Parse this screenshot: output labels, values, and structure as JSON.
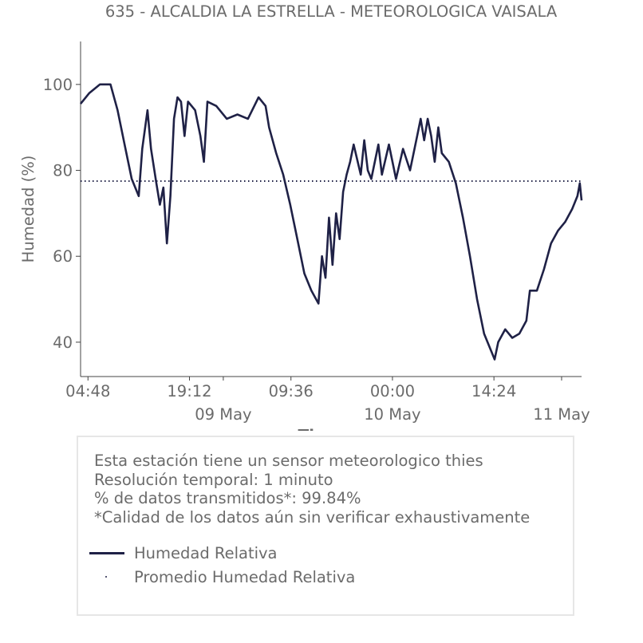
{
  "chart_data": {
    "type": "line",
    "title": "635 - ALCALDIA LA ESTRELLA - METEOROLOGICA VAISALA",
    "xlabel": "Tiempo",
    "ylabel": "Humedad (%)",
    "ylim": [
      32,
      110
    ],
    "yticks": [
      40,
      60,
      80,
      100
    ],
    "xlim": [
      "2023-05-08T03:45",
      "2023-05-11T02:50"
    ],
    "xticks": [
      {
        "t": "2023-05-08T04:48",
        "label": "04:48",
        "sublabel": ""
      },
      {
        "t": "2023-05-08T19:12",
        "label": "19:12",
        "sublabel": ""
      },
      {
        "t": "2023-05-09T00:00",
        "label": "",
        "sublabel": "09 May"
      },
      {
        "t": "2023-05-09T09:36",
        "label": "09:36",
        "sublabel": ""
      },
      {
        "t": "2023-05-10T00:00",
        "label": "00:00",
        "sublabel": "10 May"
      },
      {
        "t": "2023-05-10T14:24",
        "label": "14:24",
        "sublabel": ""
      },
      {
        "t": "2023-05-11T00:00",
        "label": "",
        "sublabel": "11 May"
      }
    ],
    "grid": false,
    "series": [
      {
        "name": "Humedad Relativa",
        "color": "#1f2146",
        "style": "solid",
        "points": [
          [
            "2023-05-08T03:45",
            95.5
          ],
          [
            "2023-05-08T05:00",
            98
          ],
          [
            "2023-05-08T06:30",
            100
          ],
          [
            "2023-05-08T08:00",
            100
          ],
          [
            "2023-05-08T09:00",
            94
          ],
          [
            "2023-05-08T10:00",
            86
          ],
          [
            "2023-05-08T11:00",
            78
          ],
          [
            "2023-05-08T12:00",
            74
          ],
          [
            "2023-05-08T12:30",
            85
          ],
          [
            "2023-05-08T13:15",
            94
          ],
          [
            "2023-05-08T13:45",
            85
          ],
          [
            "2023-05-08T14:30",
            77
          ],
          [
            "2023-05-08T15:00",
            72
          ],
          [
            "2023-05-08T15:30",
            76
          ],
          [
            "2023-05-08T16:00",
            63
          ],
          [
            "2023-05-08T16:30",
            74
          ],
          [
            "2023-05-08T17:00",
            92
          ],
          [
            "2023-05-08T17:30",
            97
          ],
          [
            "2023-05-08T18:00",
            96
          ],
          [
            "2023-05-08T18:30",
            88
          ],
          [
            "2023-05-08T19:00",
            96
          ],
          [
            "2023-05-08T20:00",
            94
          ],
          [
            "2023-05-08T20:45",
            88
          ],
          [
            "2023-05-08T21:15",
            82
          ],
          [
            "2023-05-08T21:45",
            96
          ],
          [
            "2023-05-08T23:00",
            95
          ],
          [
            "2023-05-09T00:30",
            92
          ],
          [
            "2023-05-09T02:00",
            93
          ],
          [
            "2023-05-09T03:30",
            92
          ],
          [
            "2023-05-09T05:00",
            97
          ],
          [
            "2023-05-09T06:00",
            95
          ],
          [
            "2023-05-09T06:30",
            90
          ],
          [
            "2023-05-09T07:30",
            84
          ],
          [
            "2023-05-09T08:30",
            79
          ],
          [
            "2023-05-09T09:30",
            72
          ],
          [
            "2023-05-09T10:30",
            64
          ],
          [
            "2023-05-09T11:30",
            56
          ],
          [
            "2023-05-09T12:30",
            52
          ],
          [
            "2023-05-09T13:30",
            49
          ],
          [
            "2023-05-09T14:00",
            60
          ],
          [
            "2023-05-09T14:30",
            55
          ],
          [
            "2023-05-09T15:00",
            69
          ],
          [
            "2023-05-09T15:30",
            58
          ],
          [
            "2023-05-09T16:00",
            70
          ],
          [
            "2023-05-09T16:30",
            64
          ],
          [
            "2023-05-09T17:00",
            75
          ],
          [
            "2023-05-09T17:30",
            79
          ],
          [
            "2023-05-09T18:00",
            82
          ],
          [
            "2023-05-09T18:30",
            86
          ],
          [
            "2023-05-09T19:30",
            79
          ],
          [
            "2023-05-09T20:00",
            87
          ],
          [
            "2023-05-09T20:30",
            80
          ],
          [
            "2023-05-09T21:00",
            78
          ],
          [
            "2023-05-09T22:00",
            86
          ],
          [
            "2023-05-09T22:30",
            79
          ],
          [
            "2023-05-09T23:30",
            86
          ],
          [
            "2023-05-10T00:30",
            78
          ],
          [
            "2023-05-10T01:30",
            85
          ],
          [
            "2023-05-10T02:30",
            80
          ],
          [
            "2023-05-10T03:30",
            88
          ],
          [
            "2023-05-10T04:00",
            92
          ],
          [
            "2023-05-10T04:30",
            87
          ],
          [
            "2023-05-10T05:00",
            92
          ],
          [
            "2023-05-10T05:30",
            88
          ],
          [
            "2023-05-10T06:00",
            82
          ],
          [
            "2023-05-10T06:30",
            90
          ],
          [
            "2023-05-10T07:00",
            84
          ],
          [
            "2023-05-10T08:00",
            82
          ],
          [
            "2023-05-10T09:00",
            77
          ],
          [
            "2023-05-10T10:00",
            69
          ],
          [
            "2023-05-10T11:00",
            60
          ],
          [
            "2023-05-10T12:00",
            50
          ],
          [
            "2023-05-10T13:00",
            42
          ],
          [
            "2023-05-10T14:00",
            38
          ],
          [
            "2023-05-10T14:30",
            36
          ],
          [
            "2023-05-10T15:00",
            40
          ],
          [
            "2023-05-10T16:00",
            43
          ],
          [
            "2023-05-10T17:00",
            41
          ],
          [
            "2023-05-10T18:00",
            42
          ],
          [
            "2023-05-10T19:00",
            45
          ],
          [
            "2023-05-10T19:30",
            52
          ],
          [
            "2023-05-10T20:30",
            52
          ],
          [
            "2023-05-10T21:30",
            57
          ],
          [
            "2023-05-10T22:30",
            63
          ],
          [
            "2023-05-10T23:30",
            66
          ],
          [
            "2023-05-11T00:30",
            68
          ],
          [
            "2023-05-11T01:30",
            71
          ],
          [
            "2023-05-11T02:15",
            74
          ],
          [
            "2023-05-11T02:35",
            77
          ],
          [
            "2023-05-11T02:50",
            73
          ]
        ]
      },
      {
        "name": "Promedio Humedad Relativa",
        "color": "#1f2146",
        "style": "dotted",
        "value": 77.5
      }
    ],
    "legend_position": "bottom"
  },
  "info": {
    "lines": [
      "Esta estación tiene un sensor meteorologico thies",
      "Resolución temporal: 1 minuto",
      "% de datos transmitidos*: 99.84%",
      "*Calidad de los datos aún sin verificar exhaustivamente"
    ]
  },
  "legend": {
    "items": [
      {
        "label": "Humedad Relativa"
      },
      {
        "label": "Promedio Humedad Relativa"
      }
    ]
  }
}
